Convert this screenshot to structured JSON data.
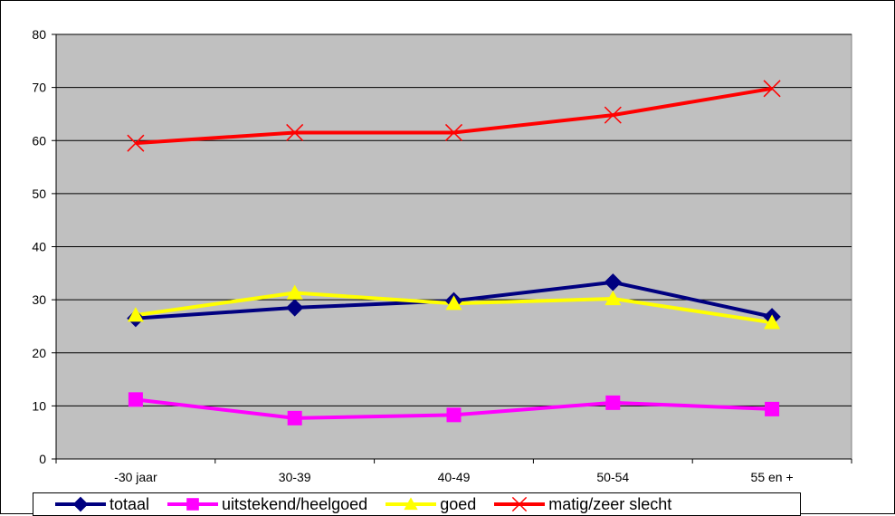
{
  "chart_data": {
    "type": "line",
    "categories": [
      "-30 jaar",
      "30-39",
      "40-49",
      "50-54",
      "55 en +"
    ],
    "ylim": [
      0,
      80
    ],
    "yticks": [
      0,
      10,
      20,
      30,
      40,
      50,
      60,
      70,
      80
    ],
    "grid": true,
    "legend_position": "bottom",
    "plot_background": "#c0c0c0",
    "series": [
      {
        "name": "totaal",
        "color": "#000080",
        "marker": "diamond",
        "values": [
          26.5,
          28.5,
          29.8,
          33.3,
          26.8
        ]
      },
      {
        "name": "uitstekend/heelgoed",
        "color": "#ff00ff",
        "marker": "square",
        "values": [
          11.2,
          7.7,
          8.3,
          10.6,
          9.4
        ]
      },
      {
        "name": "goed",
        "color": "#ffff00",
        "marker": "triangle",
        "values": [
          27.1,
          31.3,
          29.3,
          30.2,
          25.7
        ]
      },
      {
        "name": "matig/zeer slecht",
        "color": "#ff0000",
        "marker": "x",
        "values": [
          59.5,
          61.5,
          61.5,
          64.8,
          69.8
        ]
      }
    ]
  }
}
